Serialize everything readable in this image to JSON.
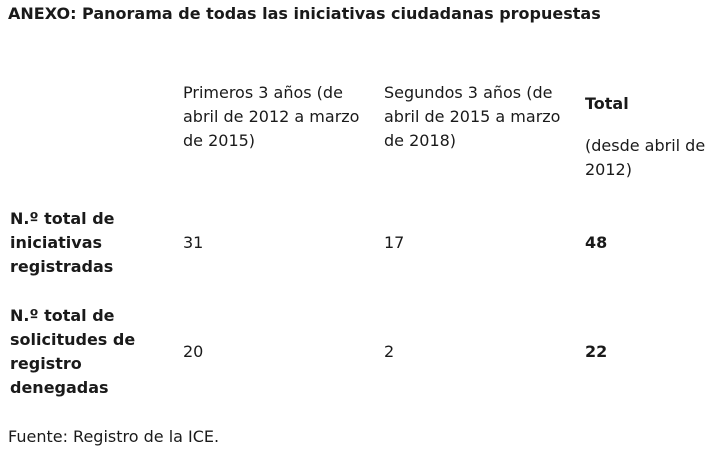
{
  "title": "ANEXO: Panorama de todas las iniciativas ciudadanas propuestas",
  "table": {
    "headers": {
      "col1": "Primeros 3 años (de abril de 2012 a marzo de 2015)",
      "col2": "Segundos 3 años (de abril de 2015 a marzo de 2018)",
      "col3_title": "Total",
      "col3_sub": "(desde abril de 2012)"
    },
    "rows": [
      {
        "label": "N.º total de iniciativas registradas",
        "values": [
          "31",
          "17",
          "48"
        ]
      },
      {
        "label": "N.º total de solicitudes de registro denegadas",
        "values": [
          "20",
          "2",
          "22"
        ]
      }
    ]
  },
  "source": "Fuente: Registro de la ICE."
}
